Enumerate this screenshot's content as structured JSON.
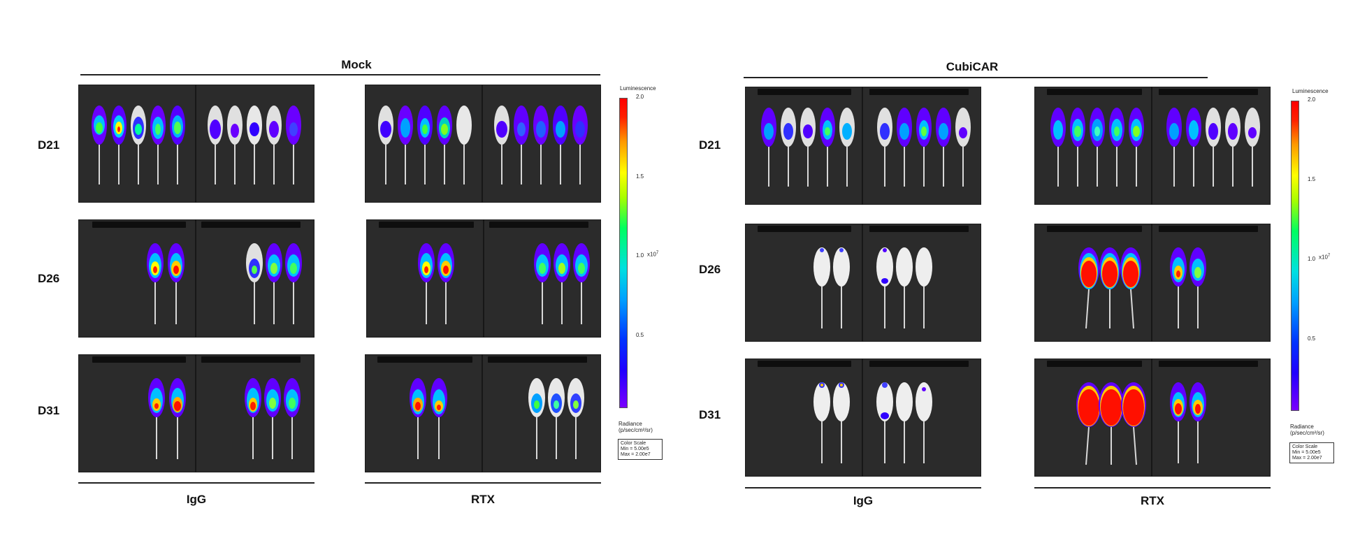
{
  "groups": [
    {
      "title": "Mock",
      "columns": [
        "IgG",
        "RTX"
      ]
    },
    {
      "title": "CubiCAR",
      "columns": [
        "IgG",
        "RTX"
      ]
    }
  ],
  "rows": [
    "D21",
    "D26",
    "D31"
  ],
  "color_scale": {
    "title": "Luminescence",
    "ticks": [
      "2.0",
      "1.5",
      "1.0",
      "0.5"
    ],
    "exponent": "x10",
    "exponent_power": "7",
    "units_line1": "Radiance",
    "units_line2": "(p/sec/cm²/sr)",
    "box_line1": "Color Scale",
    "box_line2": "Min = 5.00e5",
    "box_line3": "Max = 2.00e7"
  }
}
